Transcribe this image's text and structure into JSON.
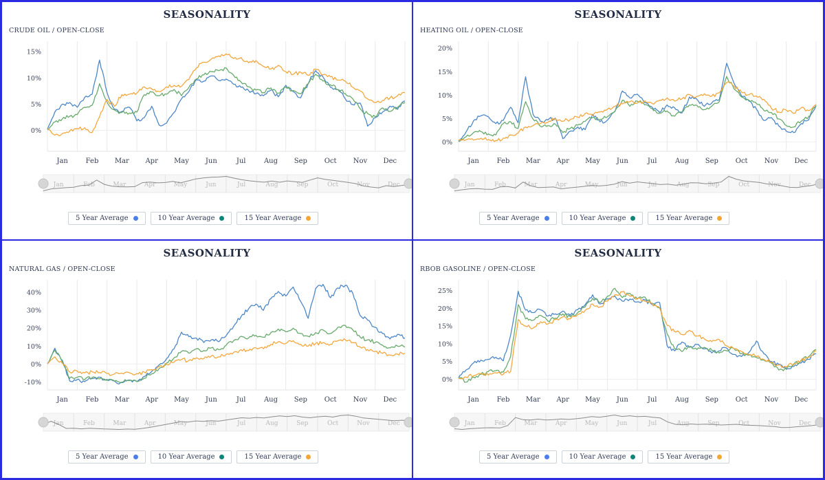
{
  "legend": {
    "items": [
      {
        "label": "5 Year Average",
        "line_color": "#4d87c7",
        "dot_color": "#4c7de8"
      },
      {
        "label": "10 Year Average",
        "line_color": "#67aa6c",
        "dot_color": "#0f8579"
      },
      {
        "label": "15 Year Average",
        "line_color": "#f2a83d",
        "dot_color": "#f2a733"
      }
    ]
  },
  "navigator": {
    "bg": "#f6f6f6",
    "border": "#e9e9e9",
    "line_color": "#8c8c8c",
    "label_color": "#b9b9b9",
    "handle_color": "#d6d6d6"
  },
  "colors": {
    "panel_border": "#2a2ae0",
    "gridline": "#e8e8e8",
    "title_text": "#222c44"
  },
  "chart_data": [
    {
      "type": "line",
      "title": "SEASONALITY",
      "subtitle": "CRUDE OIL / OPEN-CLOSE",
      "categories": [
        "Jan",
        "Feb",
        "Mar",
        "Apr",
        "May",
        "Jun",
        "Jul",
        "Aug",
        "Sep",
        "Oct",
        "Nov",
        "Dec"
      ],
      "unit": "%",
      "ylim": [
        -4,
        17
      ],
      "yticks": [
        0,
        5,
        10,
        15
      ],
      "grid": "vertical-month-lines",
      "legend_position": "bottom",
      "series": [
        {
          "name": "5 Year Average",
          "values": [
            0.2,
            3.5,
            5.0,
            5.3,
            4.4,
            6.3,
            6.9,
            13.4,
            7.2,
            4.0,
            3.6,
            4.4,
            1.8,
            2.4,
            4.6,
            1.0,
            1.4,
            3.4,
            6.0,
            7.4,
            9.7,
            9.4,
            10.4,
            9.5,
            9.8,
            8.8,
            8.2,
            7.6,
            7.0,
            6.6,
            7.7,
            6.4,
            8.6,
            7.4,
            6.2,
            8.9,
            11.4,
            10.2,
            8.2,
            7.8,
            6.0,
            4.9,
            5.2,
            0.8,
            2.4,
            3.5,
            4.6,
            4.0,
            5.6
          ]
        },
        {
          "name": "10 Year Average",
          "values": [
            0.1,
            1.6,
            2.2,
            2.7,
            3.0,
            4.4,
            4.8,
            8.9,
            5.4,
            3.9,
            3.4,
            3.3,
            3.5,
            6.8,
            7.3,
            6.6,
            6.9,
            7.8,
            6.6,
            8.2,
            9.8,
            10.6,
            11.2,
            11.4,
            11.9,
            10.5,
            9.2,
            8.3,
            7.7,
            7.2,
            8.1,
            7.1,
            8.2,
            7.6,
            7.0,
            8.9,
            10.7,
            9.4,
            8.7,
            7.8,
            7.0,
            6.0,
            4.1,
            3.2,
            2.6,
            4.3,
            3.6,
            4.4,
            5.3
          ]
        },
        {
          "name": "15 Year Average",
          "values": [
            0.3,
            -0.9,
            -0.6,
            -0.1,
            0.3,
            0.5,
            -0.4,
            2.6,
            5.9,
            4.6,
            6.8,
            6.9,
            7.1,
            8.3,
            7.9,
            7.4,
            8.3,
            8.6,
            8.4,
            9.7,
            11.9,
            13.0,
            13.6,
            14.2,
            14.6,
            13.7,
            13.9,
            12.9,
            13.3,
            12.2,
            11.7,
            12.4,
            11.2,
            10.7,
            11.1,
            10.5,
            11.7,
            10.6,
            10.2,
            9.6,
            9.4,
            8.2,
            7.5,
            6.0,
            5.3,
            5.7,
            6.2,
            6.6,
            7.2
          ]
        }
      ]
    },
    {
      "type": "line",
      "title": "SEASONALITY",
      "subtitle": "HEATING OIL / OPEN-CLOSE",
      "categories": [
        "Jan",
        "Feb",
        "Mar",
        "Apr",
        "May",
        "Jun",
        "Jul",
        "Aug",
        "Sep",
        "Oct",
        "Nov",
        "Dec"
      ],
      "unit": "%",
      "ylim": [
        -2,
        21.5
      ],
      "yticks": [
        0,
        5,
        10,
        15,
        20
      ],
      "grid": "vertical-month-lines",
      "legend_position": "bottom",
      "series": [
        {
          "name": "5 Year Average",
          "values": [
            0.2,
            2.1,
            4.5,
            5.6,
            5.4,
            3.9,
            4.6,
            7.4,
            4.1,
            13.9,
            5.9,
            4.4,
            4.7,
            5.1,
            0.7,
            2.3,
            3.2,
            2.6,
            5.9,
            4.3,
            4.7,
            6.5,
            10.9,
            9.4,
            10.2,
            8.4,
            7.4,
            6.3,
            7.9,
            7.3,
            6.2,
            9.6,
            9.1,
            7.6,
            8.3,
            9.0,
            16.8,
            12.5,
            9.8,
            8.7,
            7.0,
            4.6,
            5.2,
            3.4,
            2.3,
            2.0,
            3.9,
            4.7,
            7.8
          ]
        },
        {
          "name": "10 Year Average",
          "values": [
            0.1,
            1.1,
            2.0,
            2.2,
            1.7,
            1.5,
            3.9,
            4.3,
            2.9,
            8.6,
            4.9,
            3.3,
            3.5,
            3.8,
            2.0,
            2.9,
            3.6,
            4.4,
            5.2,
            4.8,
            5.4,
            6.6,
            8.9,
            7.6,
            8.7,
            7.9,
            7.1,
            6.1,
            6.6,
            5.5,
            6.4,
            7.9,
            7.8,
            6.9,
            7.6,
            8.6,
            14.0,
            11.3,
            9.6,
            8.9,
            8.2,
            6.7,
            6.3,
            4.9,
            3.5,
            3.2,
            4.4,
            5.4,
            7.6
          ]
        },
        {
          "name": "15 Year Average",
          "values": [
            0.3,
            0.5,
            0.4,
            0.8,
            0.5,
            0.3,
            0.8,
            1.5,
            1.9,
            3.2,
            3.5,
            3.9,
            4.2,
            5.0,
            4.4,
            4.8,
            5.3,
            6.1,
            5.6,
            6.4,
            7.0,
            7.6,
            8.1,
            8.6,
            8.3,
            8.8,
            8.2,
            8.9,
            9.4,
            8.7,
            9.2,
            10.1,
            9.7,
            10.3,
            9.8,
            10.5,
            12.7,
            11.9,
            10.6,
            10.1,
            9.8,
            9.1,
            7.2,
            6.4,
            6.8,
            6.1,
            7.3,
            6.7,
            8.0
          ]
        }
      ]
    },
    {
      "type": "line",
      "title": "SEASONALITY",
      "subtitle": "NATURAL GAS / OPEN-CLOSE",
      "categories": [
        "Jan",
        "Feb",
        "Mar",
        "Apr",
        "May",
        "Jun",
        "Jul",
        "Aug",
        "Sep",
        "Oct",
        "Nov",
        "Dec"
      ],
      "unit": "%",
      "ylim": [
        -14.5,
        47
      ],
      "yticks": [
        -10,
        0,
        10,
        20,
        30,
        40
      ],
      "grid": "vertical-month-lines",
      "legend_position": "bottom",
      "series": [
        {
          "name": "5 Year Average",
          "values": [
            0.2,
            8.8,
            2.0,
            -9.5,
            -8.7,
            -9.9,
            -8.2,
            -7.4,
            -8.6,
            -9.4,
            -10.4,
            -9.0,
            -9.8,
            -7.0,
            -4.2,
            -0.5,
            3.0,
            8.5,
            17.8,
            15.2,
            14.5,
            12.0,
            13.5,
            12.4,
            15.8,
            21.0,
            26.5,
            30.8,
            33.5,
            30.0,
            36.5,
            40.5,
            38.0,
            43.0,
            35.0,
            25.5,
            42.0,
            44.5,
            37.0,
            42.5,
            44.0,
            39.5,
            27.0,
            24.5,
            20.5,
            17.0,
            14.0,
            16.5,
            14.5
          ]
        },
        {
          "name": "10 Year Average",
          "values": [
            0.1,
            7.8,
            1.0,
            -8.0,
            -7.5,
            -8.8,
            -7.6,
            -8.3,
            -9.2,
            -9.6,
            -10.2,
            -9.3,
            -9.9,
            -8.0,
            -5.5,
            -2.5,
            0.5,
            3.5,
            7.0,
            6.0,
            8.5,
            7.5,
            9.0,
            8.0,
            10.5,
            13.0,
            15.5,
            14.5,
            16.0,
            15.0,
            17.5,
            19.5,
            18.0,
            20.0,
            17.0,
            15.5,
            17.5,
            19.0,
            17.0,
            20.5,
            21.5,
            19.0,
            15.0,
            13.5,
            12.0,
            10.5,
            9.0,
            10.0,
            9.5
          ]
        },
        {
          "name": "15 Year Average",
          "values": [
            0.2,
            4.0,
            0.5,
            -4.5,
            -4.0,
            -5.0,
            -4.4,
            -4.8,
            -5.3,
            -5.6,
            -5.2,
            -4.9,
            -5.4,
            -4.6,
            -3.2,
            -1.5,
            -0.2,
            1.0,
            2.5,
            2.0,
            3.5,
            3.0,
            4.5,
            4.0,
            5.5,
            6.5,
            8.0,
            7.5,
            9.0,
            8.5,
            11.0,
            12.5,
            11.5,
            13.0,
            11.0,
            10.0,
            11.5,
            12.0,
            11.0,
            13.0,
            13.5,
            12.0,
            9.5,
            8.0,
            7.0,
            6.0,
            5.0,
            5.5,
            6.0
          ]
        }
      ]
    },
    {
      "type": "line",
      "title": "SEASONALITY",
      "subtitle": "RBOB GASOLINE / OPEN-CLOSE",
      "categories": [
        "Jan",
        "Feb",
        "Mar",
        "Apr",
        "May",
        "Jun",
        "Jul",
        "Aug",
        "Sep",
        "Oct",
        "Nov",
        "Dec"
      ],
      "unit": "%",
      "ylim": [
        -3,
        28
      ],
      "yticks": [
        0,
        5,
        10,
        15,
        20,
        25
      ],
      "grid": "vertical-month-lines",
      "legend_position": "bottom",
      "series": [
        {
          "name": "5 Year Average",
          "values": [
            0.4,
            2.6,
            4.6,
            5.4,
            5.6,
            6.2,
            5.2,
            12.5,
            24.8,
            19.5,
            18.8,
            19.6,
            17.8,
            18.4,
            19.2,
            18.0,
            19.6,
            21.0,
            23.8,
            21.2,
            22.6,
            23.4,
            22.0,
            22.6,
            21.8,
            22.4,
            21.0,
            21.6,
            9.5,
            8.0,
            10.5,
            9.0,
            9.8,
            8.6,
            7.4,
            8.0,
            8.8,
            7.0,
            6.4,
            7.6,
            10.8,
            7.2,
            5.0,
            4.2,
            2.8,
            3.6,
            4.6,
            5.6,
            7.2
          ]
        },
        {
          "name": "10 Year Average",
          "values": [
            0.5,
            -0.8,
            0.6,
            1.4,
            2.2,
            2.4,
            2.0,
            6.5,
            21.0,
            17.0,
            16.6,
            18.0,
            16.4,
            17.2,
            18.4,
            17.6,
            18.8,
            20.4,
            22.8,
            21.6,
            23.4,
            25.6,
            23.0,
            24.2,
            22.6,
            23.2,
            21.4,
            20.2,
            12.8,
            8.6,
            7.8,
            9.2,
            8.4,
            9.0,
            8.2,
            7.4,
            8.0,
            8.6,
            7.2,
            6.8,
            6.2,
            5.4,
            4.6,
            2.6,
            3.0,
            4.2,
            5.2,
            6.4,
            8.4
          ]
        },
        {
          "name": "15 Year Average",
          "values": [
            0.3,
            0.6,
            1.0,
            1.6,
            1.2,
            1.8,
            1.4,
            2.2,
            16.8,
            15.0,
            14.4,
            16.2,
            15.6,
            16.8,
            17.6,
            17.0,
            18.2,
            19.4,
            21.2,
            20.4,
            22.0,
            23.8,
            24.6,
            23.4,
            22.8,
            22.0,
            21.2,
            20.0,
            15.2,
            13.4,
            12.6,
            13.8,
            12.2,
            11.4,
            10.6,
            11.2,
            9.4,
            8.6,
            7.8,
            7.0,
            6.4,
            5.6,
            4.8,
            4.0,
            3.4,
            4.4,
            5.4,
            6.2,
            8.0
          ]
        }
      ]
    }
  ]
}
